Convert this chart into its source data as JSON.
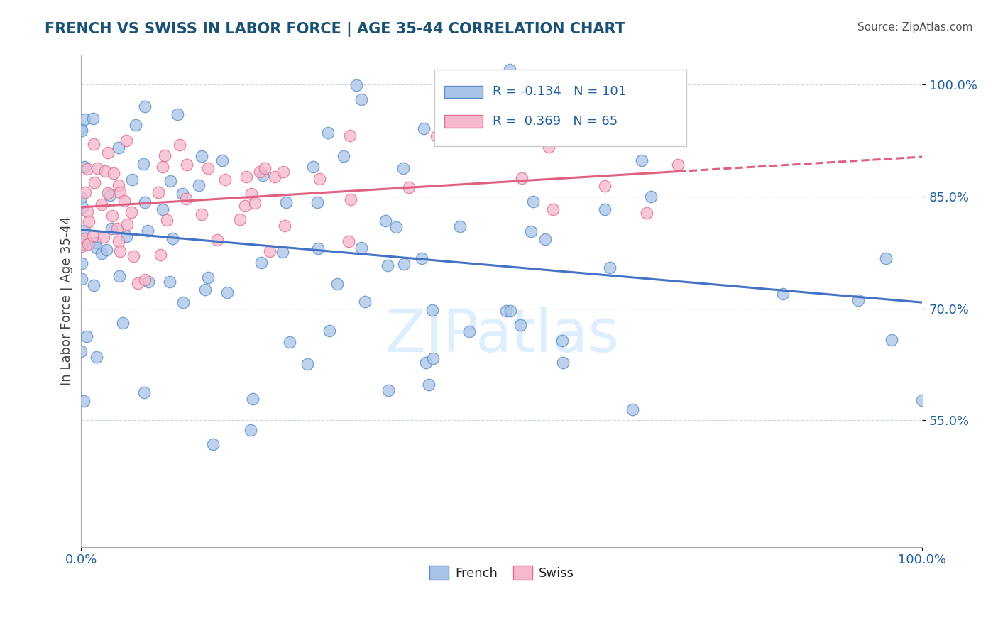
{
  "title": "FRENCH VS SWISS IN LABOR FORCE | AGE 35-44 CORRELATION CHART",
  "source_text": "Source: ZipAtlas.com",
  "ylabel": "In Labor Force | Age 35-44",
  "xlim": [
    0.0,
    1.0
  ],
  "ylim": [
    0.38,
    1.04
  ],
  "french_R": -0.134,
  "french_N": 101,
  "swiss_R": 0.369,
  "swiss_N": 65,
  "french_color": "#aac4e8",
  "swiss_color": "#f5b8cc",
  "french_edge_color": "#5b8dc8",
  "swiss_edge_color": "#e07090",
  "french_line_color": "#4472c4",
  "swiss_line_color": "#e06080",
  "title_color": "#1a5276",
  "axis_label_color": "#2060a0",
  "tick_color": "#2060a0",
  "grid_color": "#d0d8e0",
  "background_color": "#ffffff",
  "watermark_color": "#ddeeff",
  "legend_border_color": "#cccccc",
  "bottom_legend_text_color": "#222222",
  "y_tick_vals": [
    0.55,
    0.7,
    0.85,
    1.0
  ],
  "y_tick_labels": [
    "55.0%",
    "70.0%",
    "85.0%",
    "100.0%"
  ],
  "scatter_size": 140,
  "scatter_alpha": 0.75,
  "scatter_lw": 1.0,
  "line_width": 2.2
}
